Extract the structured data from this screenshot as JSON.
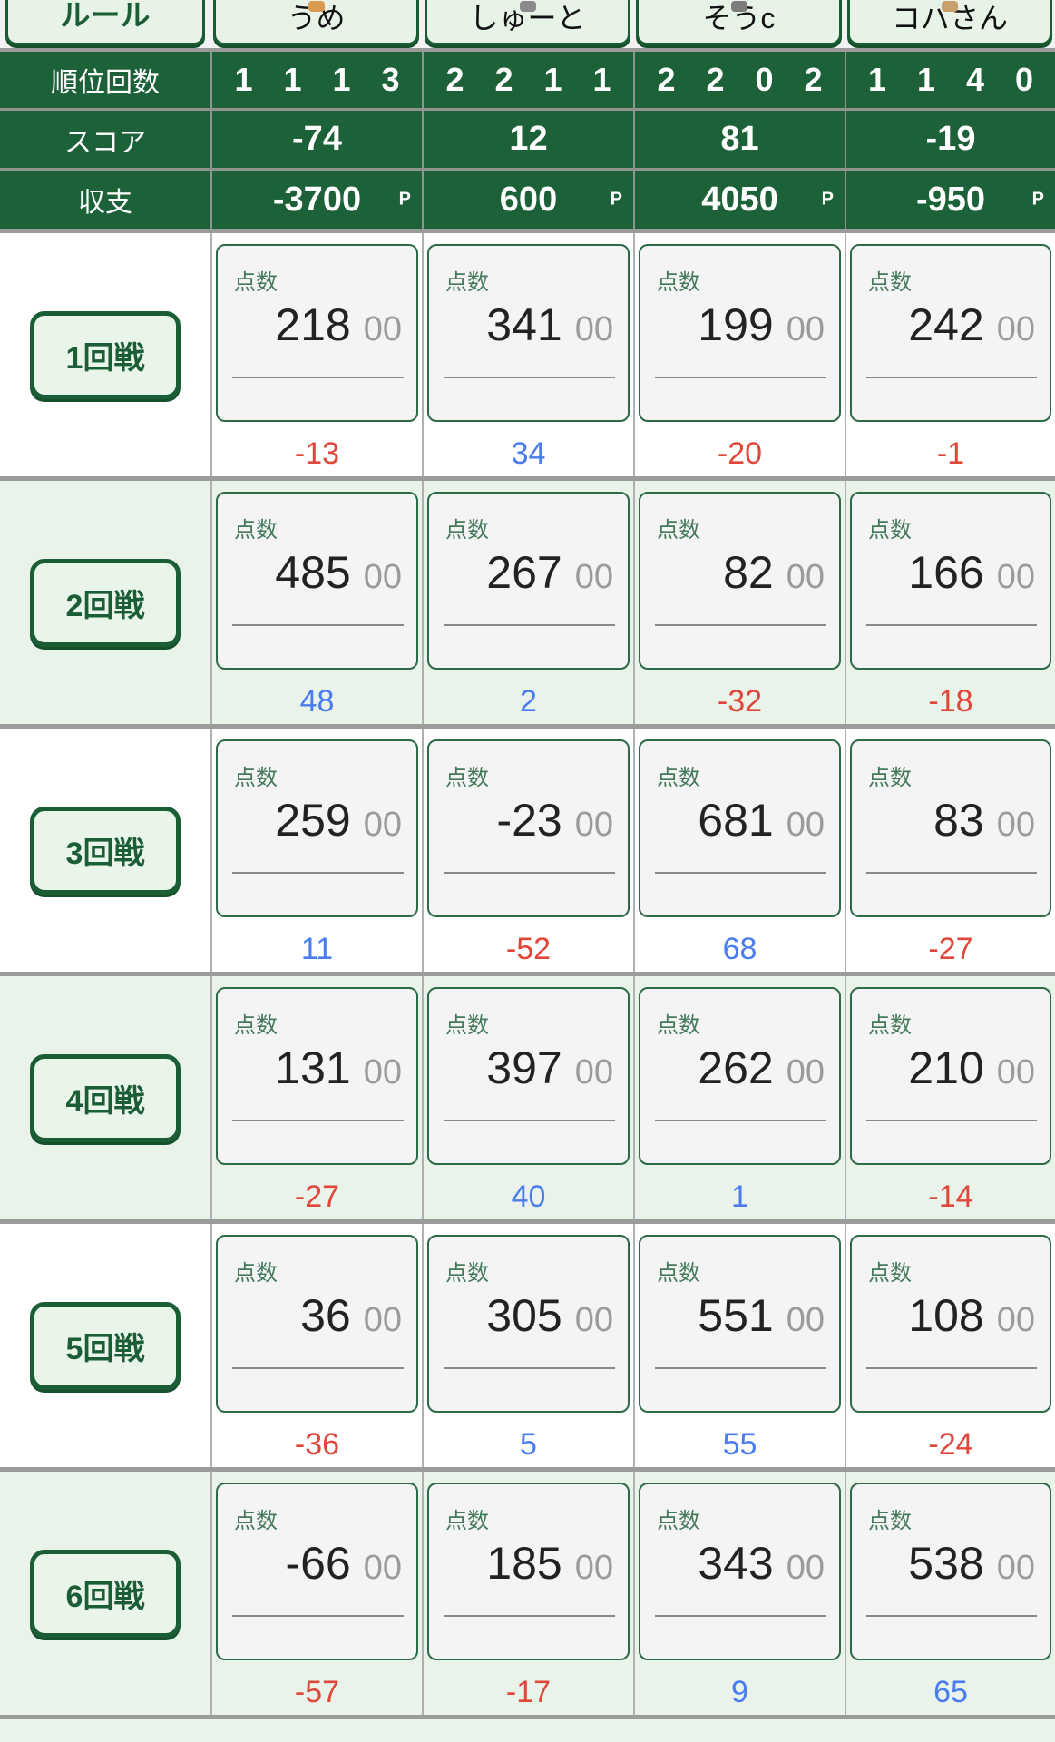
{
  "header": {
    "rule_button": "ルール",
    "players": [
      {
        "name": "うめ",
        "icon_color": "#d99a4e"
      },
      {
        "name": "しゅーと",
        "icon_color": "#8a8a8a"
      },
      {
        "name": "そうc",
        "icon_color": "#7c7c7c"
      },
      {
        "name": "コバさん",
        "icon_color": "#c9a06a"
      }
    ]
  },
  "stats": {
    "rank_label": "順位回数",
    "rank_values": [
      "1 1 1 3",
      "2 2 1 1",
      "2 2 0 2",
      "1 1 4 0"
    ],
    "score_label": "スコア",
    "score_values": [
      "-74",
      "12",
      "81",
      "-19"
    ],
    "balance_label": "収支",
    "balance_values": [
      "-3700",
      "600",
      "4050",
      "-950"
    ],
    "balance_unit": "P"
  },
  "points_label": "点数",
  "points_suffix": "00",
  "rounds": [
    {
      "label": "1回戦",
      "points": [
        "218",
        "341",
        "199",
        "242"
      ],
      "deltas": [
        "-13",
        "34",
        "-20",
        "-1"
      ]
    },
    {
      "label": "2回戦",
      "points": [
        "485",
        "267",
        "82",
        "166"
      ],
      "deltas": [
        "48",
        "2",
        "-32",
        "-18"
      ]
    },
    {
      "label": "3回戦",
      "points": [
        "259",
        "-23",
        "681",
        "83"
      ],
      "deltas": [
        "11",
        "-52",
        "68",
        "-27"
      ]
    },
    {
      "label": "4回戦",
      "points": [
        "131",
        "397",
        "262",
        "210"
      ],
      "deltas": [
        "-27",
        "40",
        "1",
        "-14"
      ]
    },
    {
      "label": "5回戦",
      "points": [
        "36",
        "305",
        "551",
        "108"
      ],
      "deltas": [
        "-36",
        "5",
        "55",
        "-24"
      ]
    },
    {
      "label": "6回戦",
      "points": [
        "-66",
        "185",
        "343",
        "538"
      ],
      "deltas": [
        "-57",
        "-17",
        "9",
        "65"
      ]
    }
  ],
  "colors": {
    "band_green": "#1c6137",
    "button_border_green": "#1b5e36",
    "row_green": "#e9f3ea",
    "delta_negative": "#e0473a",
    "delta_positive": "#4a7cf0"
  }
}
